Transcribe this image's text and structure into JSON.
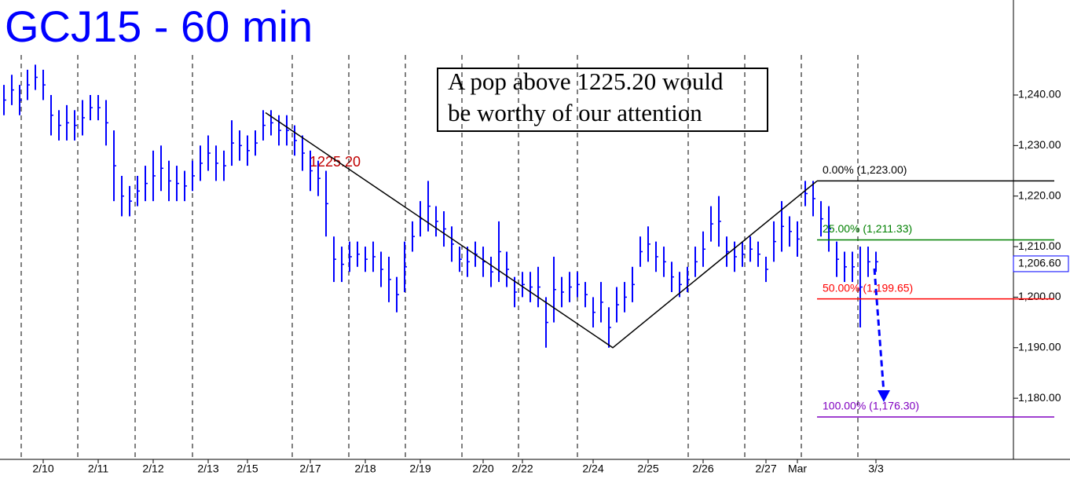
{
  "chart_data": {
    "type": "ohlc",
    "title": "GCJ15 - 60 min",
    "note": [
      "A pop above 1225.20 would",
      "be worthy of our attention"
    ],
    "price_note": "1225.20",
    "color": "#0000ff",
    "categories": [
      null,
      null,
      null,
      null,
      null,
      "2/10",
      null,
      null,
      null,
      null,
      null,
      null,
      "2/11",
      null,
      null,
      null,
      null,
      null,
      null,
      "2/12",
      null,
      null,
      null,
      null,
      null,
      null,
      "2/13",
      null,
      null,
      null,
      null,
      "2/15",
      null,
      null,
      null,
      null,
      null,
      null,
      null,
      "2/17",
      null,
      null,
      null,
      null,
      null,
      null,
      "2/18",
      null,
      null,
      null,
      null,
      null,
      null,
      "2/19",
      null,
      null,
      null,
      null,
      null,
      null,
      null,
      "2/20",
      null,
      null,
      null,
      null,
      "2/22",
      null,
      null,
      null,
      null,
      null,
      null,
      null,
      null,
      "2/24",
      null,
      null,
      null,
      null,
      null,
      null,
      "2/25",
      null,
      null,
      null,
      null,
      null,
      null,
      "2/26",
      null,
      null,
      null,
      null,
      null,
      null,
      null,
      "2/27",
      null,
      null,
      null,
      "Mar",
      null,
      null,
      null,
      null,
      null,
      null,
      null,
      null,
      null,
      "3/3"
    ],
    "high": [
      1242,
      1244,
      1242,
      1245,
      1246,
      1245,
      1240,
      1237,
      1238,
      1237,
      1239,
      1240,
      1240,
      1239,
      1233,
      1224,
      1222,
      1224,
      1226,
      1229,
      1230,
      1227,
      1226,
      1225,
      1227,
      1230,
      1232,
      1230,
      1229,
      1235,
      1233,
      1232,
      1233,
      1237,
      1237,
      1236,
      1236,
      1234,
      1232,
      1229,
      1227,
      1225,
      1212,
      1210,
      1211,
      1211,
      1210,
      1211,
      1209,
      1208,
      1204,
      1211,
      1215,
      1219,
      1223,
      1218,
      1217,
      1214,
      1210,
      1210,
      1211,
      1210,
      1208,
      1215,
      1209,
      1204,
      1205,
      1205,
      1206,
      1200,
      1208,
      1204,
      1205,
      1205,
      1203,
      1200,
      1203,
      1198,
      1202,
      1203,
      1206,
      1212,
      1214,
      1211,
      1210,
      1207,
      1205,
      1206,
      1210,
      1213,
      1218,
      1220,
      1212,
      1211,
      1211,
      1212,
      1211,
      1208,
      1215,
      1219,
      1216,
      1215,
      1223,
      1223,
      1219,
      1218,
      1211,
      1209,
      1209,
      1210,
      1210,
      1209
    ],
    "low": [
      1236,
      1238,
      1236,
      1239,
      1241,
      1239,
      1232,
      1231,
      1231,
      1231,
      1232,
      1235,
      1235,
      1230,
      1219,
      1216,
      1216,
      1218,
      1219,
      1219,
      1221,
      1219,
      1219,
      1219,
      1221,
      1223,
      1225,
      1223,
      1223,
      1226,
      1227,
      1226,
      1228,
      1231,
      1232,
      1230,
      1230,
      1228,
      1225,
      1221,
      1220,
      1212,
      1203,
      1203,
      1205,
      1206,
      1205,
      1205,
      1202,
      1199,
      1197,
      1201,
      1209,
      1212,
      1213,
      1212,
      1210,
      1207,
      1205,
      1204,
      1206,
      1204,
      1202,
      1203,
      1202,
      1198,
      1200,
      1199,
      1198,
      1190,
      1195,
      1198,
      1199,
      1200,
      1198,
      1194,
      1195,
      1190,
      1195,
      1197,
      1199,
      1206,
      1207,
      1205,
      1204,
      1201,
      1200,
      1201,
      1204,
      1206,
      1211,
      1210,
      1206,
      1205,
      1206,
      1207,
      1206,
      1203,
      1207,
      1209,
      1210,
      1208,
      1218,
      1216,
      1212,
      1209,
      1204,
      1203,
      1203,
      1194,
      1204,
      1205
    ],
    "trendline": [
      1236.5,
      1190,
      1223
    ],
    "levels": [
      {
        "label": "0.00% (1,223.00)",
        "value": 1223,
        "color": "#000000"
      },
      {
        "label": "25.00% (1,211.33)",
        "value": 1211.33,
        "color": "#008000"
      },
      {
        "label": "50.00% (1,199.65)",
        "value": 1199.65,
        "color": "#ff0000"
      },
      {
        "label": "100.00% (1,176.30)",
        "value": 1176.3,
        "color": "#8000c0"
      }
    ],
    "last_price": {
      "value": 1206.6,
      "label": "1,206.60"
    },
    "ylim": [
      1167.9,
      1258.8
    ],
    "yticks": [
      {
        "value": 1180,
        "label": "1,180.00"
      },
      {
        "value": 1190,
        "label": "1,190.00"
      },
      {
        "value": 1200,
        "label": "1,200.00"
      },
      {
        "value": 1210,
        "label": "1,210.00"
      },
      {
        "value": 1220,
        "label": "1,220.00"
      },
      {
        "value": 1230,
        "label": "1,230.00"
      },
      {
        "value": 1240,
        "label": "1,240.00"
      }
    ]
  }
}
